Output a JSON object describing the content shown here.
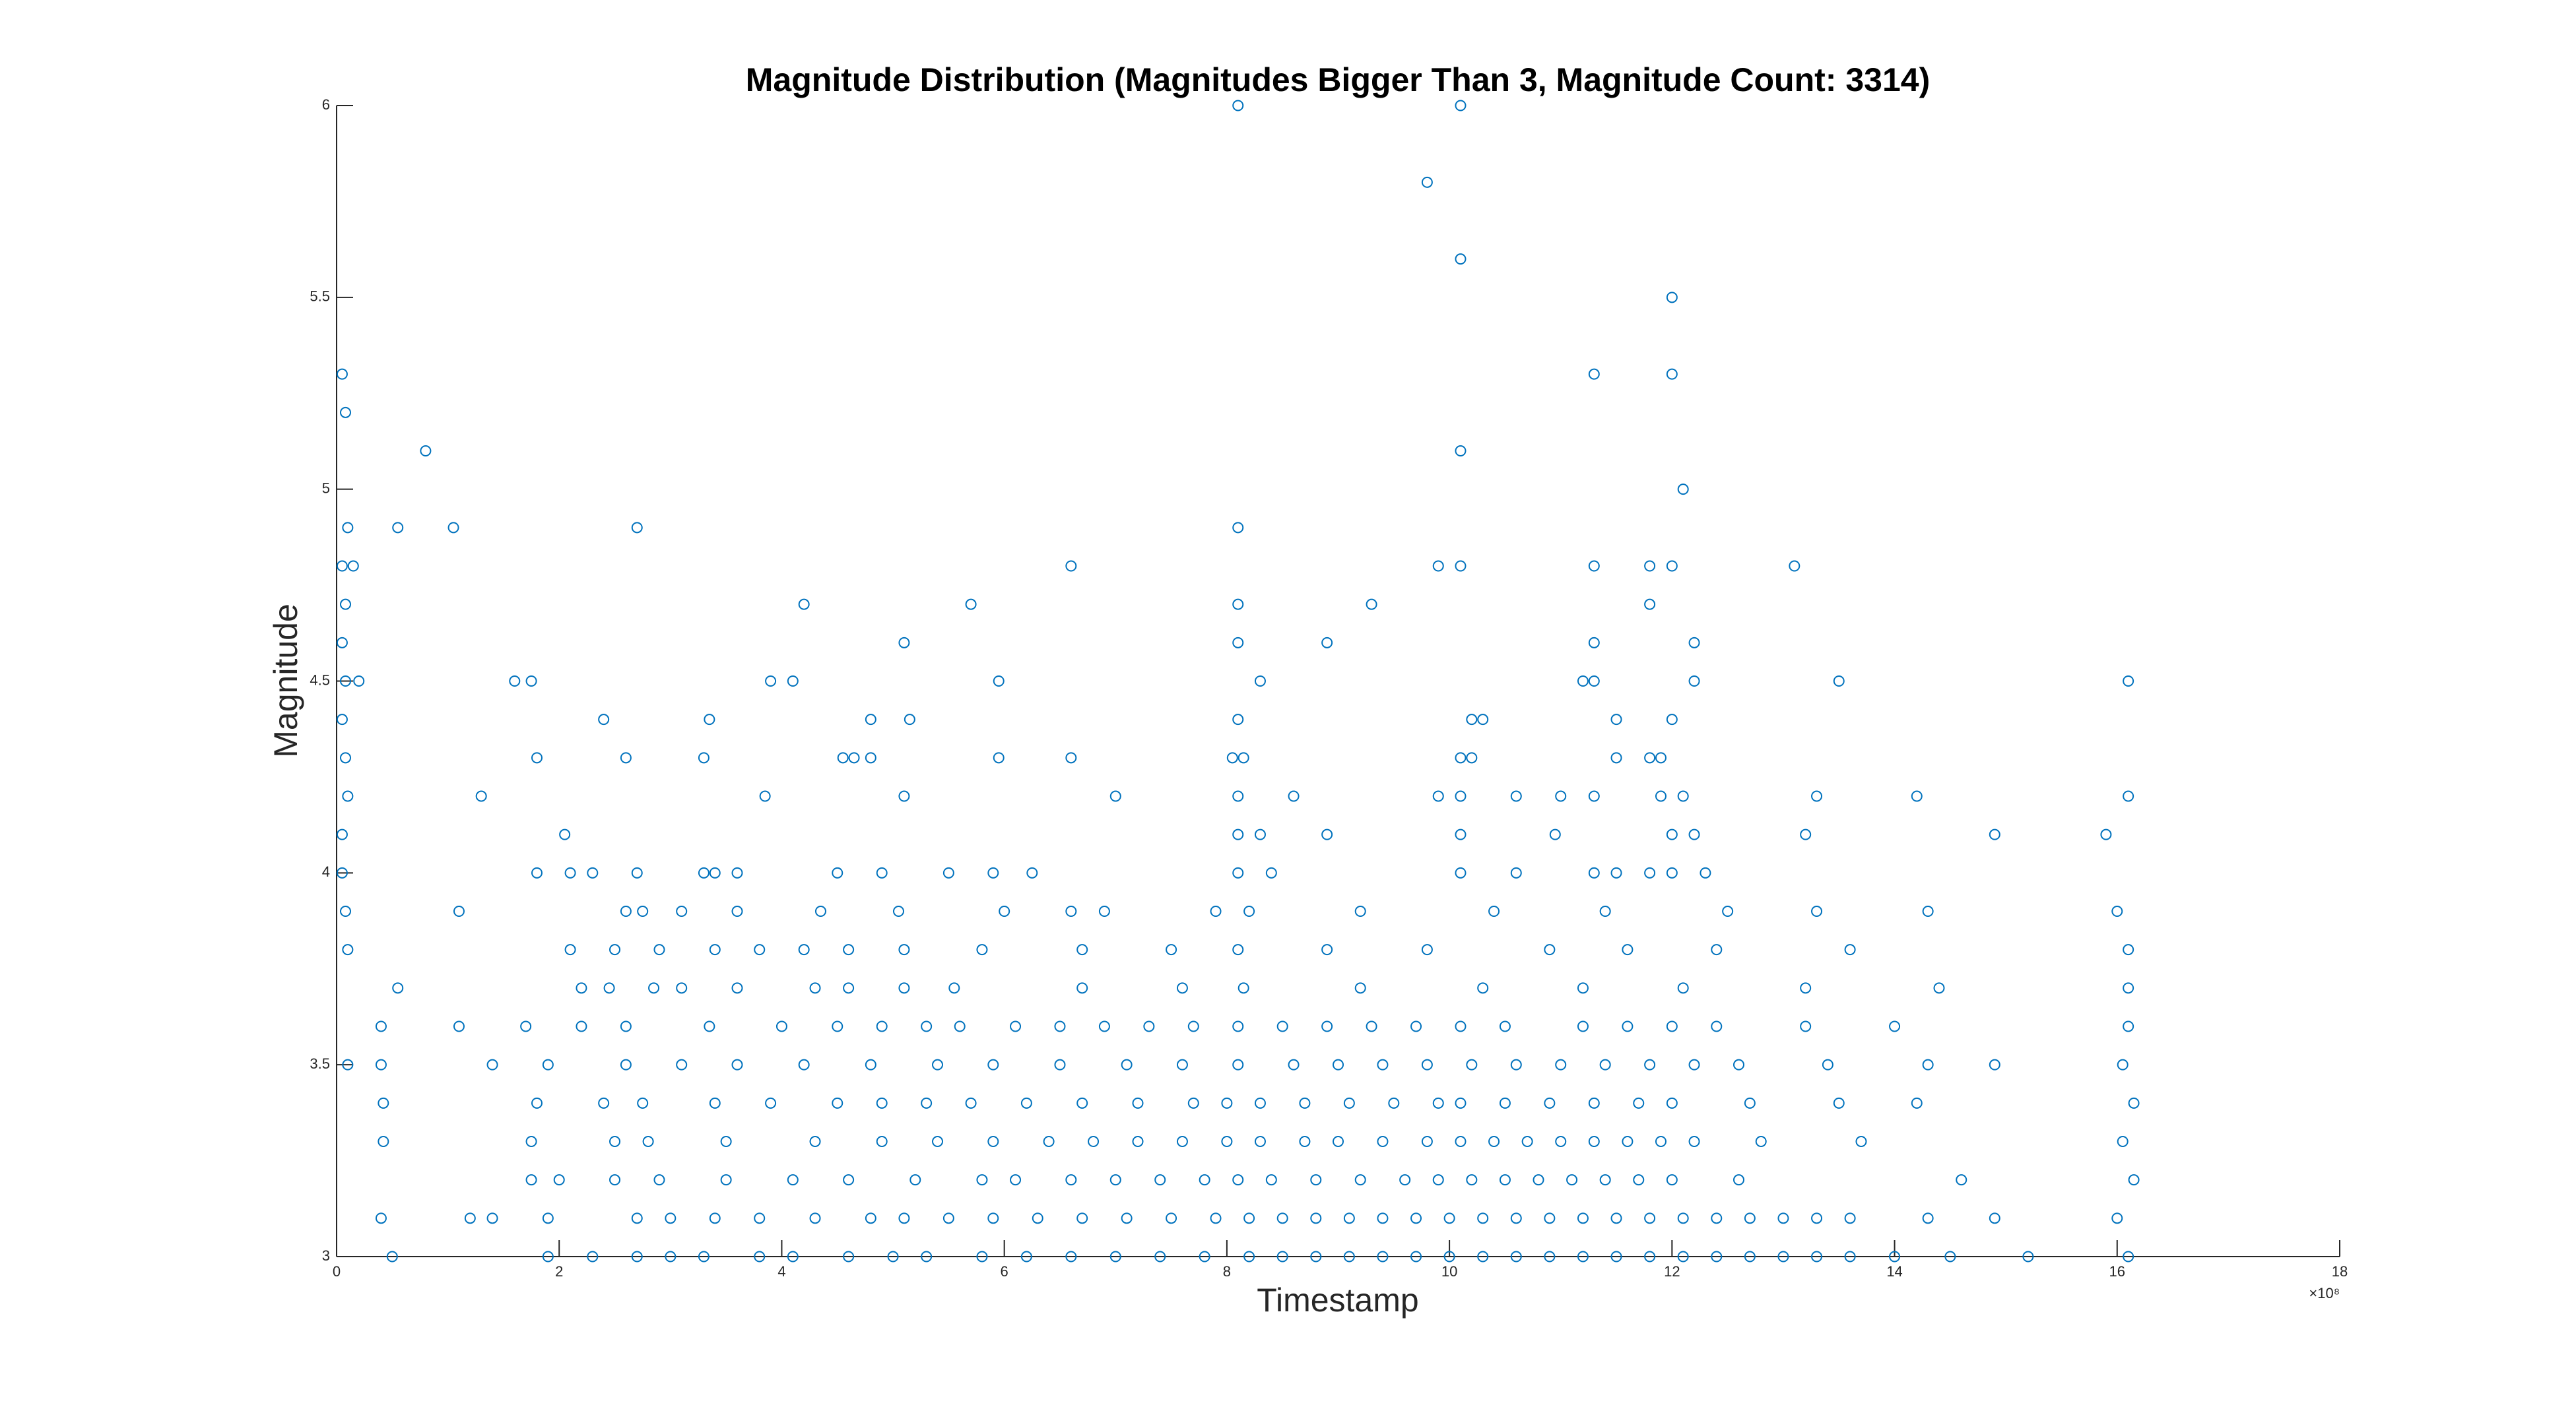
{
  "chart_data": {
    "type": "scatter",
    "title": "Magnitude Distribution (Magnitudes Bigger Than 3, Magnitude Count: 3314)",
    "xlabel": "Timestamp",
    "ylabel": "Magnitude",
    "x_exponent_label": "×10⁸",
    "color": "#0072BD",
    "marker": "circle",
    "grid": false,
    "xlim": [
      0,
      18
    ],
    "xticks": [
      0,
      2,
      4,
      6,
      8,
      10,
      12,
      14,
      16,
      18
    ],
    "ylim": [
      3,
      6
    ],
    "yticks": [
      3,
      3.5,
      4,
      4.5,
      5,
      5.5,
      6
    ],
    "x": [
      8.1,
      10.1,
      9.8,
      10.1,
      12,
      0.05,
      12,
      11.3,
      0.08,
      0.8,
      10.1,
      12.1,
      0.1,
      0.55,
      1.05,
      2.7,
      8.1,
      0.05,
      0.15,
      6.6,
      9.9,
      10.1,
      11.3,
      11.8,
      12,
      13.1,
      0.08,
      4.2,
      5.7,
      8.1,
      9.3,
      11.8,
      0.05,
      5.1,
      8.1,
      8.9,
      11.3,
      12.2,
      0.08,
      0.2,
      1.6,
      1.75,
      3.9,
      4.1,
      5.95,
      8.3,
      11.2,
      11.3,
      12.2,
      13.5,
      16.1,
      0.05,
      2.4,
      3.35,
      4.8,
      5.15,
      8.1,
      10.2,
      10.3,
      11.5,
      12,
      0.08,
      1.8,
      2.6,
      3.3,
      4.55,
      4.65,
      4.8,
      5.95,
      6.6,
      8.05,
      8.15,
      10.1,
      10.2,
      11.5,
      11.8,
      11.9,
      0.1,
      1.3,
      3.85,
      5.1,
      7,
      8.1,
      8.6,
      9.9,
      10.1,
      10.6,
      11,
      11.3,
      11.9,
      12.1,
      13.3,
      14.2,
      16.1,
      0.05,
      2.05,
      8.1,
      8.3,
      8.9,
      10.1,
      10.95,
      12,
      12.2,
      13.2,
      14.9,
      15.9,
      0.05,
      1.8,
      2.1,
      2.3,
      2.7,
      3.3,
      3.4,
      3.6,
      4.5,
      4.9,
      5.5,
      5.9,
      6.25,
      8.1,
      8.4,
      10.1,
      10.6,
      11.3,
      11.5,
      11.8,
      12,
      12.3,
      0.08,
      1.1,
      2.6,
      2.75,
      3.1,
      3.6,
      4.35,
      5.05,
      6,
      6.6,
      6.9,
      7.9,
      8.2,
      9.2,
      10.4,
      11.4,
      12.5,
      13.3,
      14.3,
      16,
      0.1,
      2.1,
      2.5,
      2.9,
      3.4,
      3.8,
      4.2,
      4.6,
      5.1,
      5.8,
      6.7,
      7.5,
      8.1,
      8.9,
      9.8,
      10.9,
      11.6,
      12.4,
      13.6,
      16.1,
      0.55,
      2.2,
      2.45,
      2.85,
      3.1,
      3.6,
      4.3,
      4.6,
      5.1,
      5.55,
      6.7,
      7.6,
      8.15,
      9.2,
      10.3,
      11.2,
      12.1,
      13.2,
      14.4,
      16.1,
      0.4,
      1.1,
      1.7,
      2.2,
      2.6,
      3.35,
      4.0,
      4.5,
      4.9,
      5.3,
      5.6,
      6.1,
      6.5,
      6.9,
      7.3,
      7.7,
      8.1,
      8.5,
      8.9,
      9.3,
      9.7,
      10.1,
      10.5,
      11.2,
      11.6,
      12,
      12.4,
      13.2,
      14,
      16.1,
      0.1,
      0.4,
      1.4,
      1.9,
      2.6,
      3.1,
      3.6,
      4.2,
      4.8,
      5.4,
      5.9,
      6.5,
      7.1,
      7.6,
      8.1,
      8.6,
      9,
      9.4,
      9.8,
      10.2,
      10.6,
      11,
      11.4,
      11.8,
      12.2,
      12.6,
      13.4,
      14.3,
      14.9,
      16.05,
      0.42,
      1.8,
      2.4,
      2.75,
      3.4,
      3.9,
      4.5,
      4.9,
      5.3,
      5.7,
      6.2,
      6.7,
      7.2,
      7.7,
      8,
      8.3,
      8.7,
      9.1,
      9.5,
      9.9,
      10.1,
      10.5,
      10.9,
      11.3,
      11.7,
      12,
      12.7,
      13.5,
      14.2,
      16.15,
      0.42,
      1.75,
      2.5,
      2.8,
      3.5,
      4.3,
      4.9,
      5.4,
      5.9,
      6.4,
      6.8,
      7.2,
      7.6,
      8,
      8.3,
      8.7,
      9,
      9.4,
      9.8,
      10.1,
      10.4,
      10.7,
      11,
      11.3,
      11.6,
      11.9,
      12.2,
      12.8,
      13.7,
      16.05,
      1.75,
      2,
      2.5,
      2.9,
      3.5,
      4.1,
      4.6,
      5.2,
      5.8,
      6.1,
      6.6,
      7,
      7.4,
      7.8,
      8.1,
      8.4,
      8.8,
      9.2,
      9.6,
      9.9,
      10.2,
      10.5,
      10.8,
      11.1,
      11.4,
      11.7,
      12,
      12.6,
      14.6,
      16.15,
      0.4,
      1.2,
      1.4,
      1.9,
      2.7,
      3,
      3.4,
      3.8,
      4.3,
      4.8,
      5.1,
      5.5,
      5.9,
      6.3,
      6.7,
      7.1,
      7.5,
      7.9,
      8.2,
      8.5,
      8.8,
      9.1,
      9.4,
      9.7,
      10,
      10.3,
      10.6,
      10.9,
      11.2,
      11.5,
      11.8,
      12.1,
      12.4,
      12.7,
      13,
      13.3,
      13.6,
      14.3,
      14.9,
      16,
      0.5,
      1.9,
      2.3,
      2.7,
      3,
      3.3,
      3.8,
      4.1,
      4.6,
      5,
      5.3,
      5.8,
      6.2,
      6.6,
      7,
      7.4,
      7.8,
      8.2,
      8.5,
      8.8,
      9.1,
      9.4,
      9.7,
      10,
      10.3,
      10.6,
      10.9,
      11.2,
      11.5,
      11.8,
      12.1,
      12.4,
      12.7,
      13,
      13.3,
      13.6,
      14,
      14.5,
      15.2,
      16.1
    ],
    "values": [
      6,
      6,
      5.8,
      5.6,
      5.5,
      5.3,
      5.3,
      5.3,
      5.2,
      5.1,
      5.1,
      5,
      4.9,
      4.9,
      4.9,
      4.9,
      4.9,
      4.8,
      4.8,
      4.8,
      4.8,
      4.8,
      4.8,
      4.8,
      4.8,
      4.8,
      4.7,
      4.7,
      4.7,
      4.7,
      4.7,
      4.7,
      4.6,
      4.6,
      4.6,
      4.6,
      4.6,
      4.6,
      4.5,
      4.5,
      4.5,
      4.5,
      4.5,
      4.5,
      4.5,
      4.5,
      4.5,
      4.5,
      4.5,
      4.5,
      4.5,
      4.4,
      4.4,
      4.4,
      4.4,
      4.4,
      4.4,
      4.4,
      4.4,
      4.4,
      4.4,
      4.3,
      4.3,
      4.3,
      4.3,
      4.3,
      4.3,
      4.3,
      4.3,
      4.3,
      4.3,
      4.3,
      4.3,
      4.3,
      4.3,
      4.3,
      4.3,
      4.2,
      4.2,
      4.2,
      4.2,
      4.2,
      4.2,
      4.2,
      4.2,
      4.2,
      4.2,
      4.2,
      4.2,
      4.2,
      4.2,
      4.2,
      4.2,
      4.2,
      4.1,
      4.1,
      4.1,
      4.1,
      4.1,
      4.1,
      4.1,
      4.1,
      4.1,
      4.1,
      4.1,
      4.1,
      4,
      4,
      4,
      4,
      4,
      4,
      4,
      4,
      4,
      4,
      4,
      4,
      4,
      4,
      4,
      4,
      4,
      4,
      4,
      4,
      4,
      4,
      3.9,
      3.9,
      3.9,
      3.9,
      3.9,
      3.9,
      3.9,
      3.9,
      3.9,
      3.9,
      3.9,
      3.9,
      3.9,
      3.9,
      3.9,
      3.9,
      3.9,
      3.9,
      3.9,
      3.9,
      3.8,
      3.8,
      3.8,
      3.8,
      3.8,
      3.8,
      3.8,
      3.8,
      3.8,
      3.8,
      3.8,
      3.8,
      3.8,
      3.8,
      3.8,
      3.8,
      3.8,
      3.8,
      3.8,
      3.8,
      3.7,
      3.7,
      3.7,
      3.7,
      3.7,
      3.7,
      3.7,
      3.7,
      3.7,
      3.7,
      3.7,
      3.7,
      3.7,
      3.7,
      3.7,
      3.7,
      3.7,
      3.7,
      3.7,
      3.7,
      3.6,
      3.6,
      3.6,
      3.6,
      3.6,
      3.6,
      3.6,
      3.6,
      3.6,
      3.6,
      3.6,
      3.6,
      3.6,
      3.6,
      3.6,
      3.6,
      3.6,
      3.6,
      3.6,
      3.6,
      3.6,
      3.6,
      3.6,
      3.6,
      3.6,
      3.6,
      3.6,
      3.6,
      3.6,
      3.6,
      3.5,
      3.5,
      3.5,
      3.5,
      3.5,
      3.5,
      3.5,
      3.5,
      3.5,
      3.5,
      3.5,
      3.5,
      3.5,
      3.5,
      3.5,
      3.5,
      3.5,
      3.5,
      3.5,
      3.5,
      3.5,
      3.5,
      3.5,
      3.5,
      3.5,
      3.5,
      3.5,
      3.5,
      3.5,
      3.5,
      3.4,
      3.4,
      3.4,
      3.4,
      3.4,
      3.4,
      3.4,
      3.4,
      3.4,
      3.4,
      3.4,
      3.4,
      3.4,
      3.4,
      3.4,
      3.4,
      3.4,
      3.4,
      3.4,
      3.4,
      3.4,
      3.4,
      3.4,
      3.4,
      3.4,
      3.4,
      3.4,
      3.4,
      3.4,
      3.4,
      3.3,
      3.3,
      3.3,
      3.3,
      3.3,
      3.3,
      3.3,
      3.3,
      3.3,
      3.3,
      3.3,
      3.3,
      3.3,
      3.3,
      3.3,
      3.3,
      3.3,
      3.3,
      3.3,
      3.3,
      3.3,
      3.3,
      3.3,
      3.3,
      3.3,
      3.3,
      3.3,
      3.3,
      3.3,
      3.3,
      3.2,
      3.2,
      3.2,
      3.2,
      3.2,
      3.2,
      3.2,
      3.2,
      3.2,
      3.2,
      3.2,
      3.2,
      3.2,
      3.2,
      3.2,
      3.2,
      3.2,
      3.2,
      3.2,
      3.2,
      3.2,
      3.2,
      3.2,
      3.2,
      3.2,
      3.2,
      3.2,
      3.2,
      3.2,
      3.2,
      3.1,
      3.1,
      3.1,
      3.1,
      3.1,
      3.1,
      3.1,
      3.1,
      3.1,
      3.1,
      3.1,
      3.1,
      3.1,
      3.1,
      3.1,
      3.1,
      3.1,
      3.1,
      3.1,
      3.1,
      3.1,
      3.1,
      3.1,
      3.1,
      3.1,
      3.1,
      3.1,
      3.1,
      3.1,
      3.1,
      3.1,
      3.1,
      3.1,
      3.1,
      3.1,
      3.1,
      3.1,
      3.1,
      3.1,
      3.1,
      3,
      3,
      3,
      3,
      3,
      3,
      3,
      3,
      3,
      3,
      3,
      3,
      3,
      3,
      3,
      3,
      3,
      3,
      3,
      3,
      3,
      3,
      3,
      3,
      3,
      3,
      3,
      3,
      3,
      3,
      3,
      3,
      3,
      3,
      3,
      3,
      3,
      3,
      3,
      3
    ]
  }
}
